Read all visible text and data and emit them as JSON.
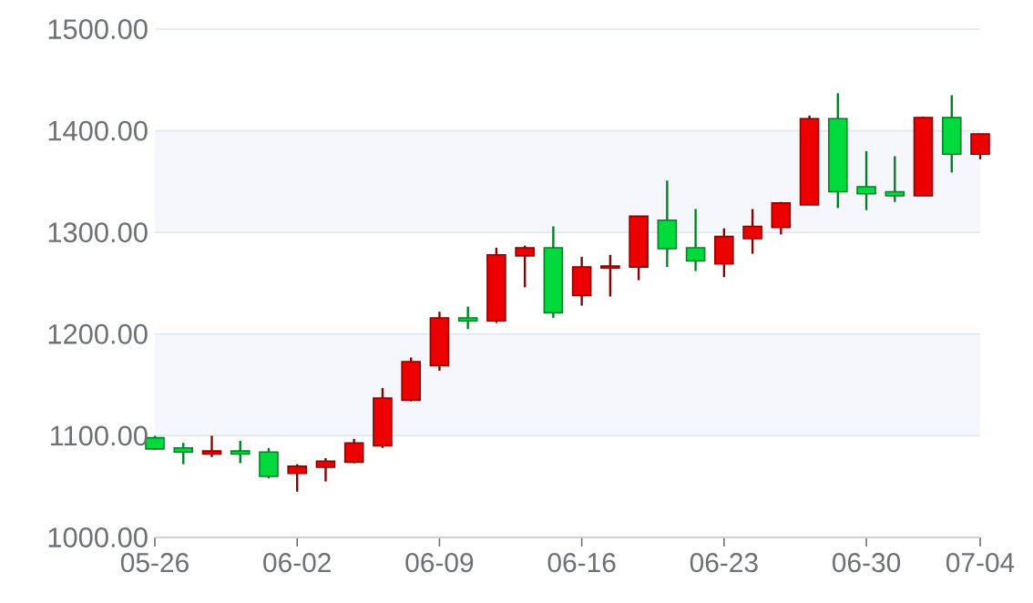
{
  "chart_data": {
    "type": "candlestick",
    "categories": [
      "05-26",
      null,
      null,
      null,
      null,
      "06-02",
      null,
      null,
      null,
      null,
      "06-09",
      null,
      null,
      null,
      null,
      "06-16",
      null,
      null,
      null,
      null,
      "06-23",
      null,
      null,
      null,
      null,
      "06-30",
      null,
      null,
      null,
      "07-04"
    ],
    "ohlc": [
      [
        1098,
        1100,
        1086,
        1087
      ],
      [
        1088,
        1093,
        1072,
        1084
      ],
      [
        1082,
        1100,
        1079,
        1085
      ],
      [
        1085,
        1095,
        1073,
        1082
      ],
      [
        1084,
        1088,
        1058,
        1060
      ],
      [
        1063,
        1072,
        1045,
        1070
      ],
      [
        1069,
        1078,
        1055,
        1075
      ],
      [
        1074,
        1097,
        1073,
        1093
      ],
      [
        1090,
        1147,
        1088,
        1137
      ],
      [
        1135,
        1177,
        1134,
        1173
      ],
      [
        1169,
        1222,
        1164,
        1216
      ],
      [
        1216,
        1227,
        1205,
        1213
      ],
      [
        1213,
        1285,
        1211,
        1278
      ],
      [
        1277,
        1287,
        1246,
        1285
      ],
      [
        1285,
        1306,
        1216,
        1221
      ],
      [
        1238,
        1276,
        1228,
        1266
      ],
      [
        1265,
        1278,
        1237,
        1267
      ],
      [
        1266,
        1316,
        1253,
        1316
      ],
      [
        1312,
        1351,
        1266,
        1284
      ],
      [
        1285,
        1323,
        1262,
        1272
      ],
      [
        1269,
        1304,
        1256,
        1296
      ],
      [
        1294,
        1323,
        1279,
        1306
      ],
      [
        1305,
        1330,
        1298,
        1329
      ],
      [
        1327,
        1415,
        1327,
        1412
      ],
      [
        1412,
        1437,
        1324,
        1340
      ],
      [
        1345,
        1380,
        1322,
        1338
      ],
      [
        1340,
        1375,
        1330,
        1336
      ],
      [
        1336,
        1414,
        1336,
        1413
      ],
      [
        1413,
        1435,
        1359,
        1377
      ],
      [
        1377,
        1397,
        1372,
        1397
      ]
    ],
    "colors": [
      "#00da3c",
      "#00da3c",
      "#ec0000",
      "#00da3c",
      "#00da3c",
      "#ec0000",
      "#ec0000",
      "#ec0000",
      "#ec0000",
      "#ec0000",
      "#ec0000",
      "#00da3c",
      "#ec0000",
      "#ec0000",
      "#00da3c",
      "#ec0000",
      "#ec0000",
      "#ec0000",
      "#00da3c",
      "#00da3c",
      "#ec0000",
      "#ec0000",
      "#ec0000",
      "#ec0000",
      "#00da3c",
      "#00da3c",
      "#00da3c",
      "#ec0000",
      "#00da3c",
      "#ec0000"
    ],
    "ylim": [
      1000,
      1500
    ],
    "yticks": [
      {
        "value": 1000,
        "label": "1000.00"
      },
      {
        "value": 1100,
        "label": "1100.00"
      },
      {
        "value": 1200,
        "label": "1200.00"
      },
      {
        "value": 1300,
        "label": "1300.00"
      },
      {
        "value": 1400,
        "label": "1400.00"
      },
      {
        "value": 1500,
        "label": "1500.00"
      }
    ],
    "grid": "y",
    "bands": [
      {
        "axis": "y",
        "from": 1100,
        "to": 1200,
        "color": "#f6f7fc"
      },
      {
        "axis": "y",
        "from": 1300,
        "to": 1400,
        "color": "#f6f7fc"
      }
    ]
  }
}
